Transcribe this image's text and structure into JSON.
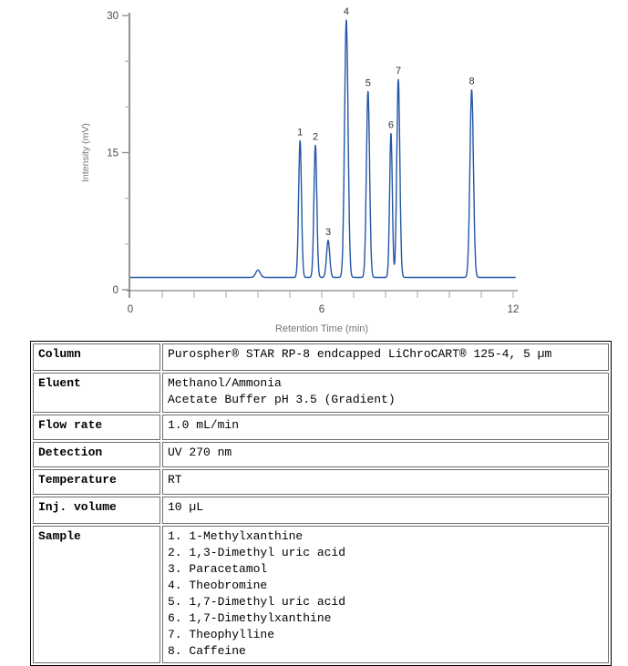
{
  "chart_data": {
    "type": "line",
    "title": "",
    "xlabel": "Retention Time (min)",
    "ylabel": "Intensity (mV)",
    "xlim": [
      0,
      12
    ],
    "ylim": [
      0,
      30
    ],
    "x_major_ticks": [
      0,
      6,
      12
    ],
    "x_minor_tick_step_min": 1,
    "y_major_ticks": [
      0,
      15,
      30
    ],
    "y_minor_tick_step_mV": 5,
    "grid": false,
    "legend": "none",
    "line_color": "#2456a6",
    "baseline_mV": 1.35,
    "peaks": [
      {
        "label": "1",
        "retention_min": 5.32,
        "apex_mV": 16.3,
        "sigma_min": 0.045,
        "compound": "1-Methylxanthine"
      },
      {
        "label": "2",
        "retention_min": 5.8,
        "apex_mV": 15.8,
        "sigma_min": 0.045,
        "compound": "1,3-Dimethyl uric acid"
      },
      {
        "label": "3",
        "retention_min": 6.2,
        "apex_mV": 5.4,
        "sigma_min": 0.05,
        "compound": "Paracetamol"
      },
      {
        "label": "4",
        "retention_min": 6.77,
        "apex_mV": 29.5,
        "sigma_min": 0.055,
        "compound": "Theobromine"
      },
      {
        "label": "5",
        "retention_min": 7.45,
        "apex_mV": 21.7,
        "sigma_min": 0.05,
        "compound": "1,7-Dimethyl uric acid"
      },
      {
        "label": "6",
        "retention_min": 8.17,
        "apex_mV": 17.1,
        "sigma_min": 0.042,
        "compound": "1,7-Dimethylxanthine"
      },
      {
        "label": "7",
        "retention_min": 8.4,
        "apex_mV": 23.0,
        "sigma_min": 0.048,
        "compound": "Theophylline"
      },
      {
        "label": "8",
        "retention_min": 10.7,
        "apex_mV": 21.9,
        "sigma_min": 0.055,
        "compound": "Caffeine"
      }
    ],
    "unlabeled_features": [
      {
        "retention_min": 4.0,
        "apex_mV": 2.15,
        "sigma_min": 0.07
      }
    ]
  },
  "conditions_table": {
    "rows": [
      {
        "label": "Column",
        "lines": [
          "Purospher® STAR RP-8 endcapped LiChroCART® 125-4, 5 µm"
        ]
      },
      {
        "label": "Eluent",
        "lines": [
          "Methanol/Ammonia",
          "Acetate Buffer pH 3.5 (Gradient)"
        ]
      },
      {
        "label": "Flow rate",
        "lines": [
          "1.0 mL/min"
        ]
      },
      {
        "label": "Detection",
        "lines": [
          "UV 270 nm"
        ]
      },
      {
        "label": "Temperature",
        "lines": [
          "RT"
        ]
      },
      {
        "label": "Inj. volume",
        "lines": [
          "10 µL"
        ]
      },
      {
        "label": "Sample",
        "lines": [
          "1. 1-Methylxanthine",
          "2. 1,3-Dimethyl uric acid",
          "3. Paracetamol",
          "4. Theobromine",
          "5. 1,7-Dimethyl uric acid",
          "6. 1,7-Dimethylxanthine",
          "7. Theophylline",
          "8. Caffeine"
        ]
      }
    ]
  },
  "colors": {
    "trace": "#2456a6",
    "x_axis": "#b3b3b3",
    "y_axis": "#5a5a5a",
    "major_tick": "#8c8c8c",
    "minor_tick": "#b3b3b3",
    "tick_label": "#4a4a4a",
    "axis_title": "#757575",
    "peak_label": "#333333",
    "table_border_outer": "#000000",
    "table_border_inner": "#6e6e6e",
    "table_text": "#000000"
  }
}
